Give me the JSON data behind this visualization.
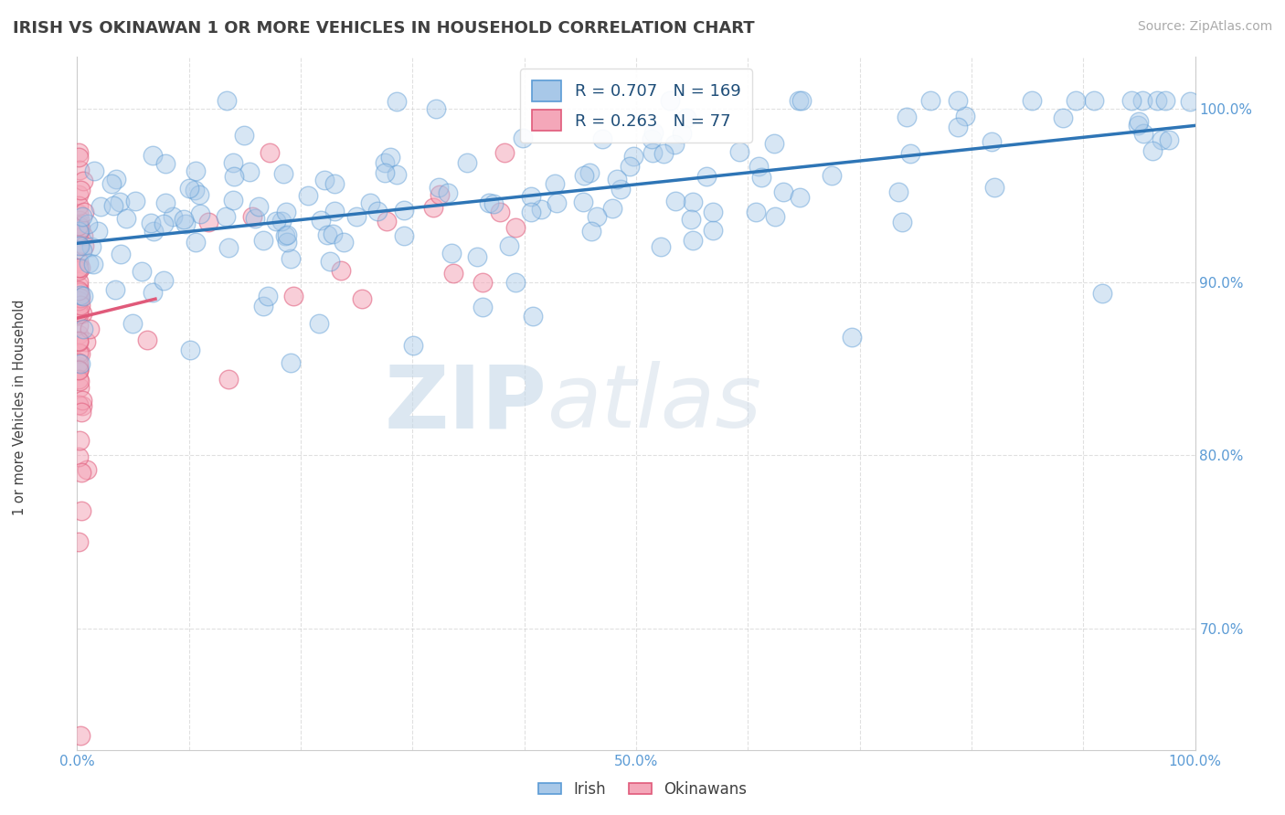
{
  "title": "IRISH VS OKINAWAN 1 OR MORE VEHICLES IN HOUSEHOLD CORRELATION CHART",
  "source_text": "Source: ZipAtlas.com",
  "ylabel": "1 or more Vehicles in Household",
  "xlim": [
    0.0,
    1.0
  ],
  "ylim": [
    0.63,
    1.03
  ],
  "x_ticks": [
    0.0,
    0.1,
    0.2,
    0.3,
    0.4,
    0.5,
    0.6,
    0.7,
    0.8,
    0.9,
    1.0
  ],
  "x_tick_labels": [
    "0.0%",
    "",
    "",
    "",
    "",
    "50.0%",
    "",
    "",
    "",
    "",
    "100.0%"
  ],
  "y_ticks": [
    0.7,
    0.8,
    0.9,
    1.0
  ],
  "y_tick_labels": [
    "70.0%",
    "80.0%",
    "90.0%",
    "100.0%"
  ],
  "irish_color": "#a8c8e8",
  "irish_edge_color": "#5b9bd5",
  "okinawan_color": "#f4a7b9",
  "okinawan_edge_color": "#e05a7a",
  "irish_R": 0.707,
  "irish_N": 169,
  "okinawan_R": 0.263,
  "okinawan_N": 77,
  "trend_color_irish": "#2e75b6",
  "trend_color_okinawan": "#e05a7a",
  "watermark_zip": "ZIP",
  "watermark_atlas": "atlas",
  "watermark_color": "#c8d8e8",
  "legend_label_irish": "Irish",
  "legend_label_okinawan": "Okinawans",
  "background_color": "#ffffff",
  "grid_color": "#cccccc",
  "title_color": "#404040",
  "title_fontsize": 13,
  "source_fontsize": 10
}
